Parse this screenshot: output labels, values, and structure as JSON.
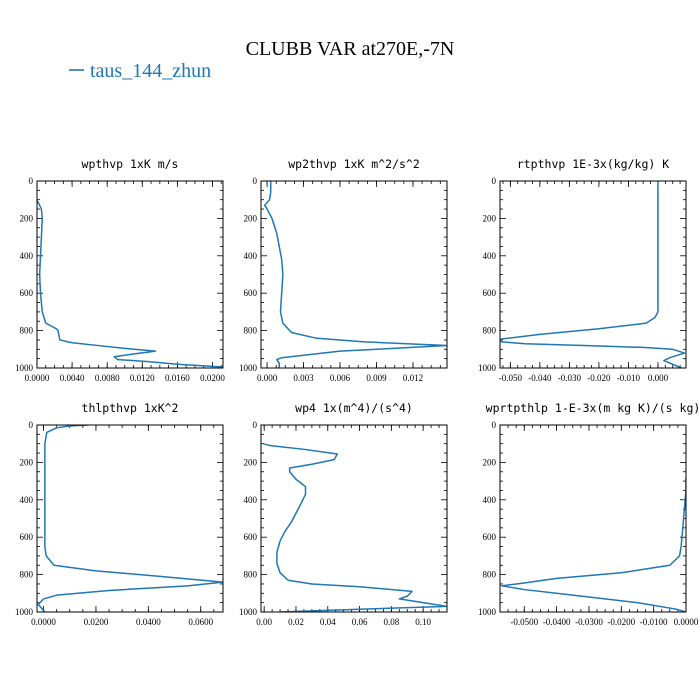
{
  "figure": {
    "title": "CLUBB VAR at270E,-7N",
    "legend": [
      {
        "name": "taus_144_zhun",
        "color": "#1f77b4"
      }
    ]
  },
  "chart_data": [
    {
      "type": "line",
      "title": "wpthvp   1xK m/s",
      "xlim": [
        0,
        0.0212
      ],
      "ylim": [
        1000,
        0
      ],
      "xticks": [
        0.0,
        0.004,
        0.008,
        0.012,
        0.016,
        0.02
      ],
      "xtick_labels": [
        "0.0000",
        "0.0040",
        "0.0080",
        "0.0120",
        "0.0160",
        "0.0200"
      ],
      "yticks": [
        0,
        200,
        400,
        600,
        800,
        1000
      ],
      "ytick_labels": [
        "0",
        "200",
        "400",
        "600",
        "800",
        "1000"
      ],
      "series": [
        {
          "color": "#1f77b4",
          "x": [
            0.0,
            0.0002,
            0.0005,
            0.0006,
            0.0005,
            0.0004,
            0.0003,
            0.0004,
            0.0006,
            0.001,
            0.0022,
            0.0024,
            0.0026,
            0.004,
            0.007,
            0.01,
            0.0135,
            0.011,
            0.0088,
            0.0092,
            0.0125,
            0.016,
            0.0212
          ],
          "y": [
            105,
            120,
            150,
            200,
            300,
            400,
            500,
            600,
            700,
            760,
            790,
            800,
            850,
            865,
            880,
            895,
            910,
            925,
            940,
            955,
            965,
            980,
            995
          ]
        }
      ]
    },
    {
      "type": "line",
      "title": "wp2thvp   1xK m^2/s^2",
      "xlim": [
        -0.0005,
        0.0148
      ],
      "ylim": [
        1000,
        0
      ],
      "xticks": [
        0.0,
        0.003,
        0.006,
        0.009,
        0.012
      ],
      "xtick_labels": [
        "0.000",
        "0.003",
        "0.006",
        "0.009",
        "0.012"
      ],
      "yticks": [
        0,
        200,
        400,
        600,
        800,
        1000
      ],
      "ytick_labels": [
        "0",
        "200",
        "400",
        "600",
        "800",
        "1000"
      ],
      "series": [
        {
          "color": "#1f77b4",
          "x": [
            0.0003,
            0.0003,
            0.0002,
            -0.0002,
            0.0,
            0.0004,
            0.0008,
            0.001,
            0.0012,
            0.0013,
            0.0012,
            0.0011,
            0.0013,
            0.002,
            0.004,
            0.008,
            0.0148,
            0.006,
            0.0012,
            0.0008,
            0.001,
            0.001
          ],
          "y": [
            0,
            60,
            100,
            130,
            150,
            200,
            280,
            350,
            420,
            500,
            600,
            700,
            760,
            810,
            840,
            860,
            880,
            910,
            945,
            955,
            975,
            1000
          ]
        }
      ]
    },
    {
      "type": "line",
      "title": "rtpthvp   1E-3x(kg/kg) K",
      "xlim": [
        -0.0535,
        0.0095
      ],
      "ylim": [
        1000,
        0
      ],
      "xticks": [
        -0.05,
        -0.04,
        -0.03,
        -0.02,
        -0.01,
        0.0
      ],
      "xtick_labels": [
        "-0.050",
        "-0.040",
        "-0.030",
        "-0.020",
        "-0.010",
        "0.000"
      ],
      "yticks": [
        0,
        200,
        400,
        600,
        800,
        1000
      ],
      "ytick_labels": [
        "0",
        "200",
        "400",
        "600",
        "800",
        "1000"
      ],
      "series": [
        {
          "color": "#1f77b4",
          "x": [
            0.0,
            0.0,
            0.0,
            0.0,
            0.0,
            -0.001,
            -0.004,
            -0.02,
            -0.04,
            -0.053,
            -0.053,
            -0.045,
            -0.025,
            -0.005,
            0.005,
            0.009,
            0.004,
            0.002,
            0.005,
            0.008
          ],
          "y": [
            0,
            200,
            400,
            600,
            700,
            730,
            760,
            790,
            820,
            845,
            860,
            870,
            880,
            890,
            900,
            920,
            945,
            960,
            980,
            1000
          ]
        }
      ]
    },
    {
      "type": "line",
      "title": "thlpthvp   1xK^2",
      "xlim": [
        -0.0025,
        0.0685
      ],
      "ylim": [
        1000,
        0
      ],
      "xticks": [
        0.0,
        0.02,
        0.04,
        0.06
      ],
      "xtick_labels": [
        "0.0000",
        "0.0200",
        "0.0400",
        "0.0600"
      ],
      "yticks": [
        0,
        200,
        400,
        600,
        800,
        1000
      ],
      "ytick_labels": [
        "0",
        "200",
        "400",
        "600",
        "800",
        "1000"
      ],
      "series": [
        {
          "color": "#1f77b4",
          "x": [
            0.017,
            0.01,
            0.005,
            0.0012,
            0.0005,
            0.0005,
            0.0005,
            0.0005,
            0.001,
            0.004,
            0.02,
            0.045,
            0.0685,
            0.055,
            0.025,
            0.005,
            0.0,
            -0.002,
            0.0005
          ],
          "y": [
            0,
            5,
            15,
            40,
            100,
            300,
            500,
            650,
            700,
            750,
            780,
            810,
            840,
            860,
            885,
            910,
            930,
            960,
            1000
          ]
        }
      ]
    },
    {
      "type": "line",
      "title": "wp4   1x(m^4)/(s^4)",
      "xlim": [
        -0.002,
        0.115
      ],
      "ylim": [
        1000,
        0
      ],
      "xticks": [
        0.0,
        0.02,
        0.04,
        0.06,
        0.08,
        0.1
      ],
      "xtick_labels": [
        "0.00",
        "0.02",
        "0.04",
        "0.06",
        "0.08",
        "0.10"
      ],
      "yticks": [
        0,
        200,
        400,
        600,
        800,
        1000
      ],
      "ytick_labels": [
        "0",
        "200",
        "400",
        "600",
        "800",
        "1000"
      ],
      "series": [
        {
          "color": "#1f77b4",
          "x": [
            0.0,
            0.0,
            0.004,
            0.025,
            0.046,
            0.044,
            0.03,
            0.016,
            0.016,
            0.02,
            0.026,
            0.026,
            0.022,
            0.017,
            0.013,
            0.01,
            0.008,
            0.008,
            0.01,
            0.015,
            0.03,
            0.06,
            0.093,
            0.09,
            0.085,
            0.1,
            0.115,
            0.06,
            0.01
          ],
          "y": [
            100,
            102,
            110,
            130,
            155,
            185,
            210,
            230,
            250,
            290,
            330,
            370,
            440,
            520,
            570,
            620,
            680,
            740,
            790,
            830,
            850,
            865,
            890,
            915,
            930,
            950,
            970,
            985,
            1000
          ]
        }
      ]
    },
    {
      "type": "line",
      "title": "wprtpthlp   1-E-3x(m kg K)/(s kg)",
      "xlim": [
        -0.0575,
        0.0
      ],
      "ylim": [
        1000,
        0
      ],
      "xticks": [
        -0.05,
        -0.04,
        -0.03,
        -0.02,
        -0.01,
        0.0
      ],
      "xtick_labels": [
        "-0.0500",
        "-0.0400",
        "-0.0300",
        "-0.0200",
        "-0.0100",
        "0.0000"
      ],
      "yticks": [
        0,
        200,
        400,
        600,
        800,
        1000
      ],
      "ytick_labels": [
        "0",
        "200",
        "400",
        "600",
        "800",
        "1000"
      ],
      "series": [
        {
          "color": "#1f77b4",
          "x": [
            0.0,
            0.0,
            -0.0005,
            -0.001,
            -0.0015,
            -0.002,
            -0.005,
            -0.02,
            -0.04,
            -0.05,
            -0.057,
            -0.05,
            -0.035,
            -0.015,
            -0.003,
            0.0
          ],
          "y": [
            280,
            350,
            450,
            550,
            650,
            700,
            750,
            790,
            820,
            845,
            860,
            880,
            910,
            950,
            985,
            1000
          ]
        }
      ]
    }
  ]
}
